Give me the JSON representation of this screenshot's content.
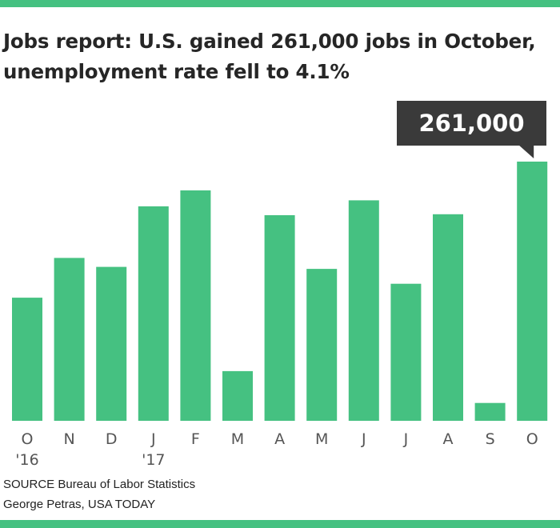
{
  "title": "Jobs report: U.S. gained 261,000 jobs in October, unemployment rate fell to 4.1%",
  "source": "SOURCE Bureau of Labor Statistics",
  "credit": "George Petras, USA TODAY",
  "colors": {
    "bar": "#45c181",
    "accent": "#45c181",
    "callout": "#3a3a3a",
    "text": "#262626"
  },
  "chart_data": {
    "type": "bar",
    "title": "Jobs report: U.S. gained 261,000 jobs in October, unemployment rate fell to 4.1%",
    "xlabel": "",
    "ylabel": "",
    "grid": false,
    "categories": [
      "O",
      "N",
      "D",
      "J",
      "F",
      "M",
      "A",
      "M",
      "J",
      "J",
      "A",
      "S",
      "O"
    ],
    "year_labels": [
      "'16",
      "",
      "",
      "'17",
      "",
      "",
      "",
      "",
      "",
      "",
      "",
      "",
      ""
    ],
    "values": [
      124000,
      164000,
      155000,
      216000,
      232000,
      50000,
      207000,
      153000,
      222000,
      138000,
      208000,
      18000,
      261000
    ],
    "ylim": [
      0,
      261000
    ],
    "annotations": [
      {
        "category_index": 12,
        "text": "261,000"
      }
    ]
  }
}
